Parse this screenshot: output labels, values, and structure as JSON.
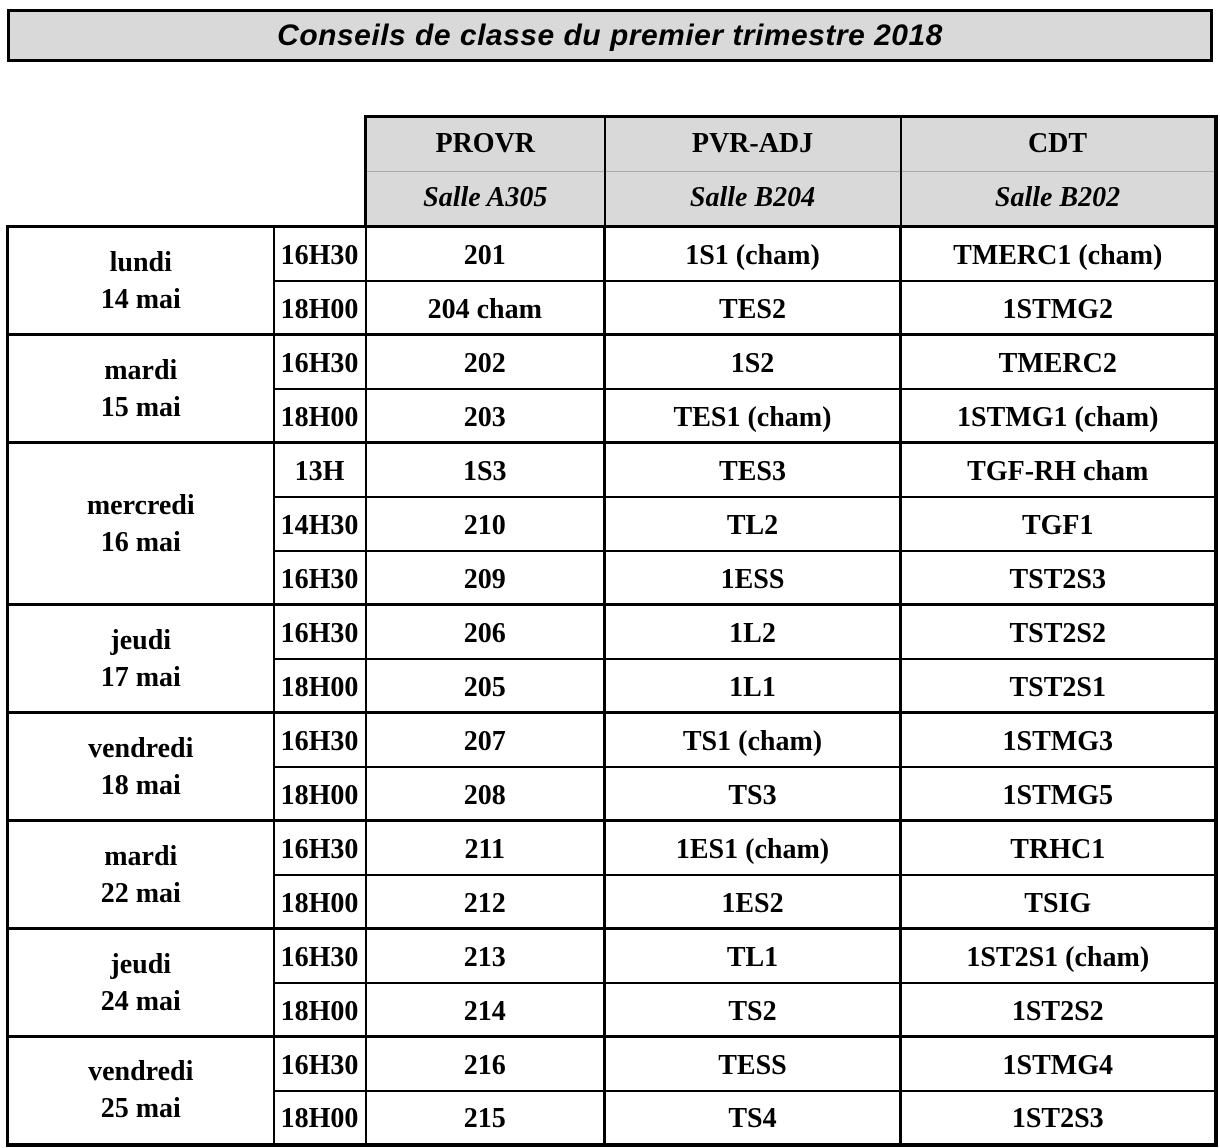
{
  "title": "Conseils de classe du premier trimestre 2018",
  "header": {
    "columns": [
      {
        "role": "PROVR",
        "salle": "Salle A305"
      },
      {
        "role": "PVR-ADJ",
        "salle": "Salle B204"
      },
      {
        "role": "CDT",
        "salle": "Salle B202"
      }
    ]
  },
  "groups": [
    {
      "day": "lundi",
      "date": "14 mai",
      "rows": [
        {
          "time": "16H30",
          "cells": [
            "201",
            "1S1 (cham)",
            "TMERC1 (cham)"
          ]
        },
        {
          "time": "18H00",
          "cells": [
            "204 cham",
            "TES2",
            "1STMG2"
          ]
        }
      ]
    },
    {
      "day": "mardi",
      "date": "15 mai",
      "rows": [
        {
          "time": "16H30",
          "cells": [
            "202",
            "1S2",
            "TMERC2"
          ]
        },
        {
          "time": "18H00",
          "cells": [
            "203",
            "TES1 (cham)",
            "1STMG1 (cham)"
          ]
        }
      ]
    },
    {
      "day": "mercredi",
      "date": "16 mai",
      "rows": [
        {
          "time": "13H",
          "cells": [
            "1S3",
            "TES3",
            "TGF-RH cham"
          ]
        },
        {
          "time": "14H30",
          "cells": [
            "210",
            "TL2",
            "TGF1"
          ]
        },
        {
          "time": "16H30",
          "cells": [
            "209",
            "1ESS",
            "TST2S3"
          ]
        }
      ]
    },
    {
      "day": "jeudi",
      "date": "17 mai",
      "rows": [
        {
          "time": "16H30",
          "cells": [
            "206",
            "1L2",
            "TST2S2"
          ]
        },
        {
          "time": "18H00",
          "cells": [
            "205",
            "1L1",
            "TST2S1"
          ]
        }
      ]
    },
    {
      "day": "vendredi",
      "date": "18 mai",
      "rows": [
        {
          "time": "16H30",
          "cells": [
            "207",
            "TS1 (cham)",
            "1STMG3"
          ]
        },
        {
          "time": "18H00",
          "cells": [
            "208",
            "TS3",
            "1STMG5"
          ]
        }
      ]
    },
    {
      "day": "mardi",
      "date": "22 mai",
      "rows": [
        {
          "time": "16H30",
          "cells": [
            "211",
            "1ES1 (cham)",
            "TRHC1"
          ]
        },
        {
          "time": "18H00",
          "cells": [
            "212",
            "1ES2",
            "TSIG"
          ]
        }
      ]
    },
    {
      "day": "jeudi",
      "date": "24 mai",
      "rows": [
        {
          "time": "16H30",
          "cells": [
            "213",
            "TL1",
            "1ST2S1 (cham)"
          ]
        },
        {
          "time": "18H00",
          "cells": [
            "214",
            "TS2",
            "1ST2S2"
          ]
        }
      ]
    },
    {
      "day": "vendredi",
      "date": "25 mai",
      "rows": [
        {
          "time": "16H30",
          "cells": [
            "216",
            "TESS",
            "1STMG4"
          ]
        },
        {
          "time": "18H00",
          "cells": [
            "215",
            "TS4",
            "1ST2S3"
          ]
        }
      ]
    }
  ],
  "colors": {
    "band_bg": "#d9d9d9",
    "border": "#000000",
    "text": "#000000"
  }
}
